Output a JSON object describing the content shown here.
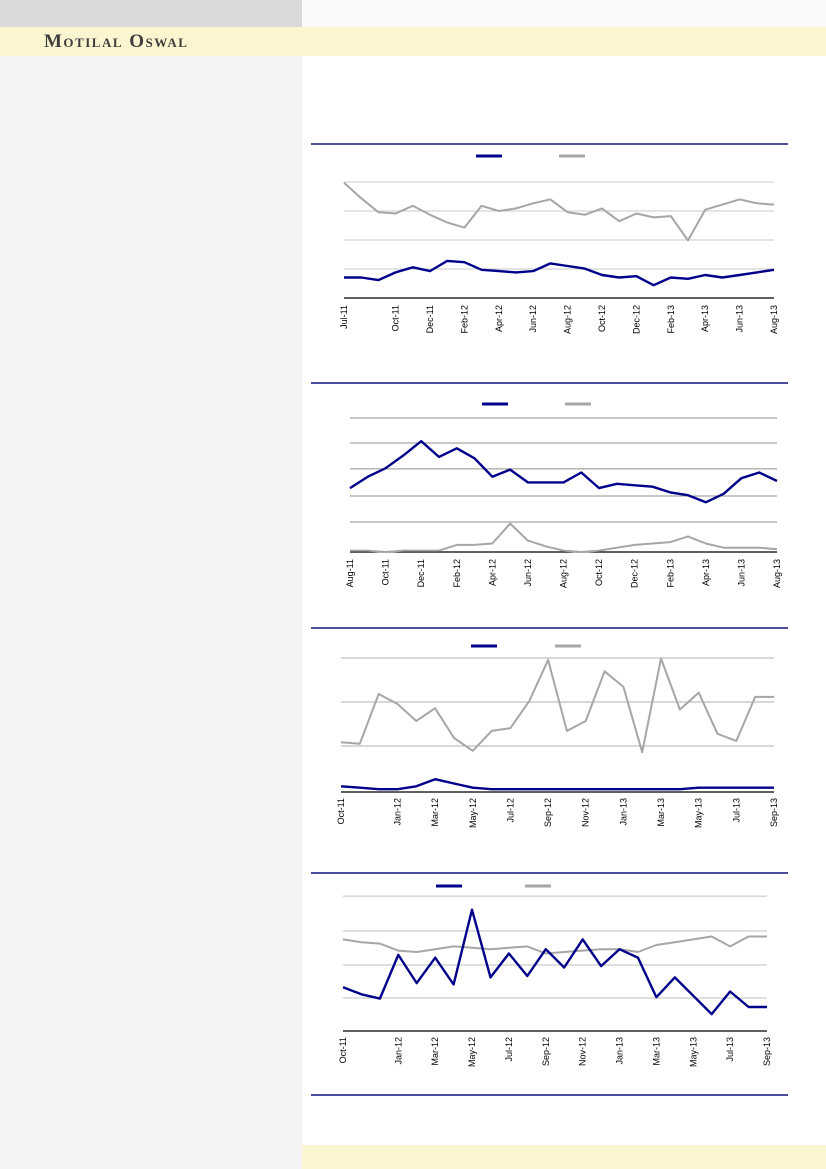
{
  "brand": {
    "name": "Motilal Oswal"
  },
  "colors": {
    "accent_navy": "#00008B",
    "series_gray": "#A6A6A6",
    "divider_navy": "#14147E",
    "band_yellow": "#FCF6D0",
    "topbar_gray": "#D9D9D9",
    "left_panel_gray": "#F4F4F4",
    "axis_black": "#000000"
  },
  "notes": {
    "legend": "each chart shows two legend line markers (navy, gray) with no visible text labels",
    "y_axis": "no y-axis tick labels visible; series values are estimated percent of plot height"
  },
  "chart_data": [
    {
      "type": "line",
      "title": "",
      "x_labels": [
        "Jul-11",
        "Oct-11",
        "Dec-11",
        "Feb-12",
        "Apr-12",
        "Jun-12",
        "Aug-12",
        "Oct-12",
        "Dec-12",
        "Feb-13",
        "Apr-13",
        "Jun-13",
        "Aug-13"
      ],
      "label_indices": [
        0,
        3,
        5,
        7,
        9,
        11,
        13,
        15,
        17,
        19,
        21,
        23,
        25
      ],
      "value_scale": "0-100 relative (no y-axis labels shown)",
      "series": [
        {
          "name": "navy",
          "color": "#00008B",
          "values": [
            16,
            16,
            14,
            20,
            24,
            21,
            29,
            28,
            22,
            21,
            20,
            21,
            27,
            25,
            23,
            18,
            16,
            17,
            10,
            16,
            15,
            18,
            16,
            18,
            20,
            22
          ]
        },
        {
          "name": "gray",
          "color": "#A6A6A6",
          "values": [
            90,
            78,
            67,
            66,
            72,
            65,
            59,
            55,
            72,
            68,
            70,
            74,
            77,
            67,
            65,
            70,
            60,
            66,
            63,
            64,
            45,
            69,
            73,
            77,
            74,
            73
          ]
        }
      ]
    },
    {
      "type": "line",
      "title": "",
      "x_labels": [
        "Aug-11",
        "Oct-11",
        "Dec-11",
        "Feb-12",
        "Apr-12",
        "Jun-12",
        "Aug-12",
        "Oct-12",
        "Dec-12",
        "Feb-13",
        "Apr-13",
        "Jun-13",
        "Aug-13"
      ],
      "label_indices": [
        0,
        2,
        4,
        6,
        8,
        10,
        12,
        14,
        16,
        18,
        20,
        22,
        24
      ],
      "value_scale": "0-100 relative (no y-axis labels shown)",
      "series": [
        {
          "name": "navy",
          "color": "#00008B",
          "values": [
            45,
            53,
            59,
            68,
            78,
            67,
            73,
            66,
            53,
            58,
            49,
            49,
            49,
            56,
            45,
            48,
            47,
            46,
            42,
            40,
            35,
            41,
            52,
            56,
            50
          ]
        },
        {
          "name": "gray",
          "color": "#A6A6A6",
          "values": [
            1,
            1,
            0,
            1,
            1,
            1,
            5,
            5,
            6,
            20,
            8,
            4,
            1,
            0,
            1,
            3,
            5,
            6,
            7,
            11,
            6,
            3,
            3,
            3,
            2
          ]
        }
      ]
    },
    {
      "type": "line",
      "title": "",
      "x_labels": [
        "Oct-11",
        "Jan-12",
        "Mar-12",
        "May-12",
        "Jul-12",
        "Sep-12",
        "Nov-12",
        "Jan-13",
        "Mar-13",
        "May-13",
        "Jul-13",
        "Sep-13"
      ],
      "label_indices": [
        0,
        3,
        5,
        7,
        9,
        11,
        13,
        15,
        17,
        19,
        21,
        23
      ],
      "value_scale": "0-100 relative (no y-axis labels shown)",
      "series": [
        {
          "name": "navy",
          "color": "#00008B",
          "values": [
            4,
            3,
            2,
            2,
            4,
            9,
            6,
            3,
            2,
            2,
            2,
            2,
            2,
            2,
            2,
            2,
            2,
            2,
            2,
            3,
            3,
            3,
            3,
            3
          ]
        },
        {
          "name": "gray",
          "color": "#A6A6A6",
          "values": [
            35,
            34,
            69,
            62,
            50,
            59,
            38,
            29,
            43,
            45,
            64,
            93,
            43,
            50,
            85,
            74,
            28,
            94,
            58,
            70,
            41,
            36,
            67,
            67
          ]
        }
      ]
    },
    {
      "type": "line",
      "title": "",
      "x_labels": [
        "Oct-11",
        "Jan-12",
        "Mar-12",
        "May-12",
        "Jul-12",
        "Sep-12",
        "Nov-12",
        "Jan-13",
        "Mar-13",
        "May-13",
        "Jul-13",
        "Sep-13"
      ],
      "label_indices": [
        0,
        3,
        5,
        7,
        9,
        11,
        13,
        15,
        17,
        19,
        21,
        23
      ],
      "value_scale": "0-100 relative (no y-axis labels shown)",
      "series": [
        {
          "name": "navy",
          "color": "#00008B",
          "values": [
            31,
            26,
            23,
            54,
            34,
            52,
            33,
            86,
            38,
            55,
            39,
            58,
            45,
            65,
            46,
            58,
            52,
            24,
            38,
            25,
            12,
            28,
            17,
            17
          ]
        },
        {
          "name": "gray",
          "color": "#A6A6A6",
          "values": [
            65,
            63,
            62,
            57,
            56,
            58,
            60,
            59,
            58,
            59,
            60,
            55,
            56,
            57,
            58,
            58,
            56,
            61,
            63,
            65,
            67,
            60,
            67,
            67
          ]
        }
      ]
    }
  ]
}
